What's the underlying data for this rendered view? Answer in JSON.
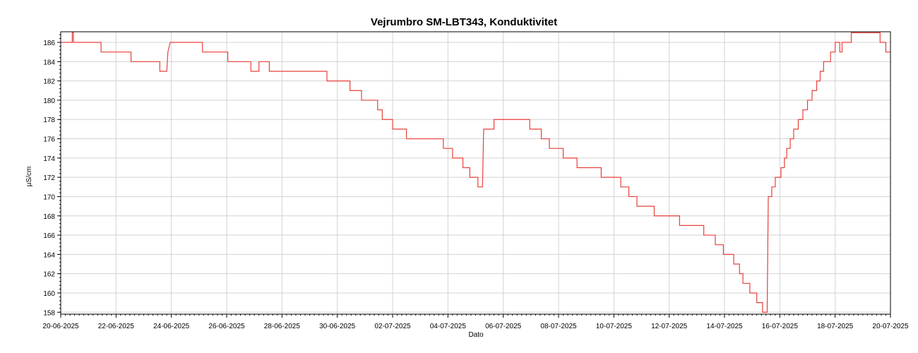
{
  "chart_data": {
    "type": "line",
    "title": "Vejrumbro SM-LBT343, Konduktivitet",
    "xlabel": "Dato",
    "ylabel": "µS/cm",
    "xlim": [
      "2025-06-20",
      "2025-07-20"
    ],
    "ylim": [
      157.8,
      187.1
    ],
    "grid": true,
    "x_ticks": [
      "20-06-2025",
      "22-06-2025",
      "24-06-2025",
      "26-06-2025",
      "28-06-2025",
      "30-06-2025",
      "02-07-2025",
      "04-07-2025",
      "06-07-2025",
      "08-07-2025",
      "10-07-2025",
      "12-07-2025",
      "14-07-2025",
      "16-07-2025",
      "18-07-2025",
      "20-07-2025"
    ],
    "y_ticks": [
      158,
      160,
      162,
      164,
      166,
      168,
      170,
      172,
      174,
      176,
      178,
      180,
      182,
      184,
      186
    ],
    "series": [
      {
        "color": "#e8403c",
        "points": [
          [
            "2025-06-20 00:00",
            186
          ],
          [
            "2025-06-20 10:00",
            186
          ],
          [
            "2025-06-20 10:00",
            187
          ],
          [
            "2025-06-20 11:00",
            187
          ],
          [
            "2025-06-20 11:00",
            186
          ],
          [
            "2025-06-21 11:00",
            186
          ],
          [
            "2025-06-21 11:00",
            185
          ],
          [
            "2025-06-22 13:00",
            185
          ],
          [
            "2025-06-22 13:00",
            184
          ],
          [
            "2025-06-23 14:00",
            184
          ],
          [
            "2025-06-23 14:00",
            183
          ],
          [
            "2025-06-23 20:00",
            183
          ],
          [
            "2025-06-23 21:00",
            185
          ],
          [
            "2025-06-23 23:00",
            186
          ],
          [
            "2025-06-25 03:00",
            186
          ],
          [
            "2025-06-25 03:00",
            185
          ],
          [
            "2025-06-26 01:00",
            185
          ],
          [
            "2025-06-26 01:00",
            184
          ],
          [
            "2025-06-26 21:00",
            184
          ],
          [
            "2025-06-26 21:00",
            183
          ],
          [
            "2025-06-27 04:00",
            183
          ],
          [
            "2025-06-27 04:00",
            184
          ],
          [
            "2025-06-27 13:00",
            184
          ],
          [
            "2025-06-27 13:00",
            183
          ],
          [
            "2025-06-29 15:00",
            183
          ],
          [
            "2025-06-29 15:00",
            182
          ],
          [
            "2025-06-30 11:00",
            182
          ],
          [
            "2025-06-30 11:00",
            181
          ],
          [
            "2025-06-30 21:00",
            181
          ],
          [
            "2025-06-30 21:00",
            180
          ],
          [
            "2025-07-01 11:00",
            180
          ],
          [
            "2025-07-01 11:00",
            179
          ],
          [
            "2025-07-01 15:00",
            179
          ],
          [
            "2025-07-01 15:00",
            178
          ],
          [
            "2025-07-02 00:00",
            178
          ],
          [
            "2025-07-02 00:00",
            177
          ],
          [
            "2025-07-02 12:00",
            177
          ],
          [
            "2025-07-02 12:00",
            176
          ],
          [
            "2025-07-03 20:00",
            176
          ],
          [
            "2025-07-03 20:00",
            175
          ],
          [
            "2025-07-04 04:00",
            175
          ],
          [
            "2025-07-04 04:00",
            174
          ],
          [
            "2025-07-04 13:00",
            174
          ],
          [
            "2025-07-04 13:00",
            173
          ],
          [
            "2025-07-04 19:00",
            173
          ],
          [
            "2025-07-04 19:00",
            172
          ],
          [
            "2025-07-05 02:00",
            172
          ],
          [
            "2025-07-05 02:00",
            171
          ],
          [
            "2025-07-05 06:00",
            171
          ],
          [
            "2025-07-05 07:00",
            177
          ],
          [
            "2025-07-05 16:00",
            177
          ],
          [
            "2025-07-05 16:00",
            178
          ],
          [
            "2025-07-06 23:00",
            178
          ],
          [
            "2025-07-06 23:00",
            177
          ],
          [
            "2025-07-07 09:00",
            177
          ],
          [
            "2025-07-07 09:00",
            176
          ],
          [
            "2025-07-07 16:00",
            176
          ],
          [
            "2025-07-07 16:00",
            175
          ],
          [
            "2025-07-08 04:00",
            175
          ],
          [
            "2025-07-08 04:00",
            174
          ],
          [
            "2025-07-08 16:00",
            174
          ],
          [
            "2025-07-08 16:00",
            173
          ],
          [
            "2025-07-09 13:00",
            173
          ],
          [
            "2025-07-09 13:00",
            172
          ],
          [
            "2025-07-10 06:00",
            172
          ],
          [
            "2025-07-10 06:00",
            171
          ],
          [
            "2025-07-10 13:00",
            171
          ],
          [
            "2025-07-10 13:00",
            170
          ],
          [
            "2025-07-10 20:00",
            170
          ],
          [
            "2025-07-10 20:00",
            169
          ],
          [
            "2025-07-11 11:00",
            169
          ],
          [
            "2025-07-11 11:00",
            168
          ],
          [
            "2025-07-12 09:00",
            168
          ],
          [
            "2025-07-12 09:00",
            167
          ],
          [
            "2025-07-13 06:00",
            167
          ],
          [
            "2025-07-13 06:00",
            166
          ],
          [
            "2025-07-13 16:00",
            166
          ],
          [
            "2025-07-13 16:00",
            165
          ],
          [
            "2025-07-13 23:00",
            165
          ],
          [
            "2025-07-13 23:00",
            164
          ],
          [
            "2025-07-14 08:00",
            164
          ],
          [
            "2025-07-14 08:00",
            163
          ],
          [
            "2025-07-14 13:00",
            163
          ],
          [
            "2025-07-14 13:00",
            162
          ],
          [
            "2025-07-14 16:00",
            162
          ],
          [
            "2025-07-14 16:00",
            161
          ],
          [
            "2025-07-14 22:00",
            161
          ],
          [
            "2025-07-14 22:00",
            160
          ],
          [
            "2025-07-15 04:00",
            160
          ],
          [
            "2025-07-15 04:00",
            159
          ],
          [
            "2025-07-15 09:00",
            159
          ],
          [
            "2025-07-15 09:00",
            158
          ],
          [
            "2025-07-15 13:00",
            158
          ],
          [
            "2025-07-15 14:00",
            170
          ],
          [
            "2025-07-15 17:00",
            170
          ],
          [
            "2025-07-15 17:00",
            171
          ],
          [
            "2025-07-15 20:00",
            171
          ],
          [
            "2025-07-15 20:00",
            172
          ],
          [
            "2025-07-16 01:00",
            172
          ],
          [
            "2025-07-16 01:00",
            173
          ],
          [
            "2025-07-16 04:00",
            173
          ],
          [
            "2025-07-16 04:00",
            174
          ],
          [
            "2025-07-16 06:00",
            174
          ],
          [
            "2025-07-16 06:00",
            175
          ],
          [
            "2025-07-16 09:00",
            175
          ],
          [
            "2025-07-16 09:00",
            176
          ],
          [
            "2025-07-16 12:00",
            176
          ],
          [
            "2025-07-16 12:00",
            177
          ],
          [
            "2025-07-16 16:00",
            177
          ],
          [
            "2025-07-16 16:00",
            178
          ],
          [
            "2025-07-16 20:00",
            178
          ],
          [
            "2025-07-16 20:00",
            179
          ],
          [
            "2025-07-17 00:00",
            179
          ],
          [
            "2025-07-17 00:00",
            180
          ],
          [
            "2025-07-17 04:00",
            180
          ],
          [
            "2025-07-17 04:00",
            181
          ],
          [
            "2025-07-17 08:00",
            181
          ],
          [
            "2025-07-17 08:00",
            182
          ],
          [
            "2025-07-17 11:00",
            182
          ],
          [
            "2025-07-17 11:00",
            183
          ],
          [
            "2025-07-17 14:00",
            183
          ],
          [
            "2025-07-17 14:00",
            184
          ],
          [
            "2025-07-17 20:00",
            184
          ],
          [
            "2025-07-17 20:00",
            185
          ],
          [
            "2025-07-18 00:00",
            185
          ],
          [
            "2025-07-18 00:00",
            186
          ],
          [
            "2025-07-18 04:00",
            186
          ],
          [
            "2025-07-18 04:00",
            185
          ],
          [
            "2025-07-18 06:00",
            185
          ],
          [
            "2025-07-18 06:00",
            186
          ],
          [
            "2025-07-18 14:00",
            186
          ],
          [
            "2025-07-18 14:00",
            187
          ],
          [
            "2025-07-19 15:00",
            187
          ],
          [
            "2025-07-19 15:00",
            186
          ],
          [
            "2025-07-19 20:00",
            186
          ],
          [
            "2025-07-19 20:00",
            185
          ],
          [
            "2025-07-20 00:00",
            185
          ]
        ]
      }
    ]
  }
}
